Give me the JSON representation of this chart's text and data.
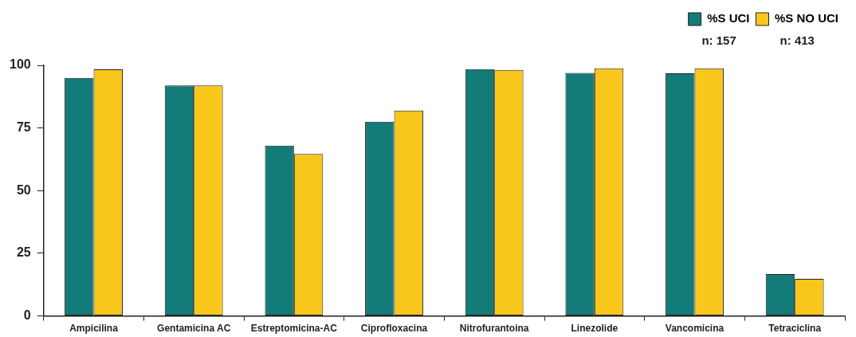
{
  "chart_data": {
    "type": "bar",
    "categories": [
      "Ampicilina",
      "Gentamicina AC",
      "Estreptomicina-AC",
      "Ciprofloxacina",
      "Nitrofurantoina",
      "Linezolide",
      "Vancomicina",
      "Tetraciclina"
    ],
    "series": [
      {
        "name": "%S UCI",
        "color": "#137b78",
        "values": [
          95,
          92,
          68,
          77.5,
          98.5,
          97,
          96.8,
          16.7
        ]
      },
      {
        "name": "%S NO UCI",
        "color": "#f9c61c",
        "values": [
          98.4,
          92,
          64.6,
          82,
          98.2,
          98.8,
          98.8,
          14.8
        ]
      }
    ],
    "ylim": [
      0,
      100
    ],
    "yticks": [
      0,
      25,
      50,
      75,
      100
    ],
    "legend": "top right",
    "annotations": [
      "n: 157",
      "n: 413"
    ]
  }
}
